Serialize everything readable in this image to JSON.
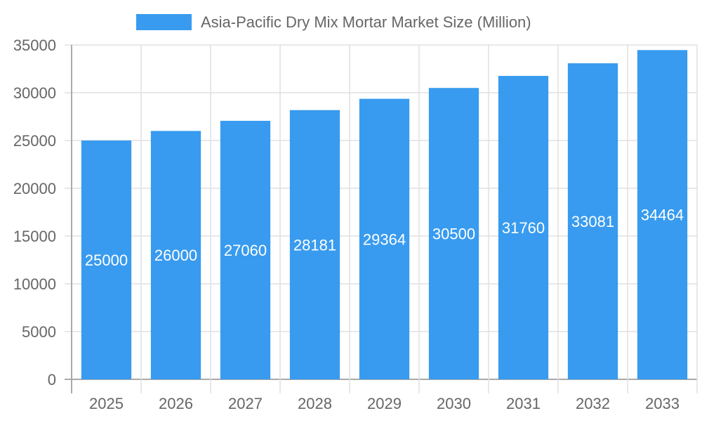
{
  "chart_data": {
    "type": "bar",
    "title": "",
    "xlabel": "",
    "ylabel": "",
    "categories": [
      "2025",
      "2026",
      "2027",
      "2028",
      "2029",
      "2030",
      "2031",
      "2032",
      "2033"
    ],
    "series": [
      {
        "name": "Asia-Pacific Dry Mix Mortar Market Size (Million)",
        "values": [
          25000,
          26000,
          27060,
          28181,
          29364,
          30500,
          31760,
          33081,
          34464
        ],
        "color": "#389BEF"
      }
    ],
    "ylim": [
      0,
      35000
    ],
    "yticks": [
      0,
      5000,
      10000,
      15000,
      20000,
      25000,
      30000,
      35000
    ],
    "grid": true,
    "legend": "top-center",
    "data_labels": true
  }
}
